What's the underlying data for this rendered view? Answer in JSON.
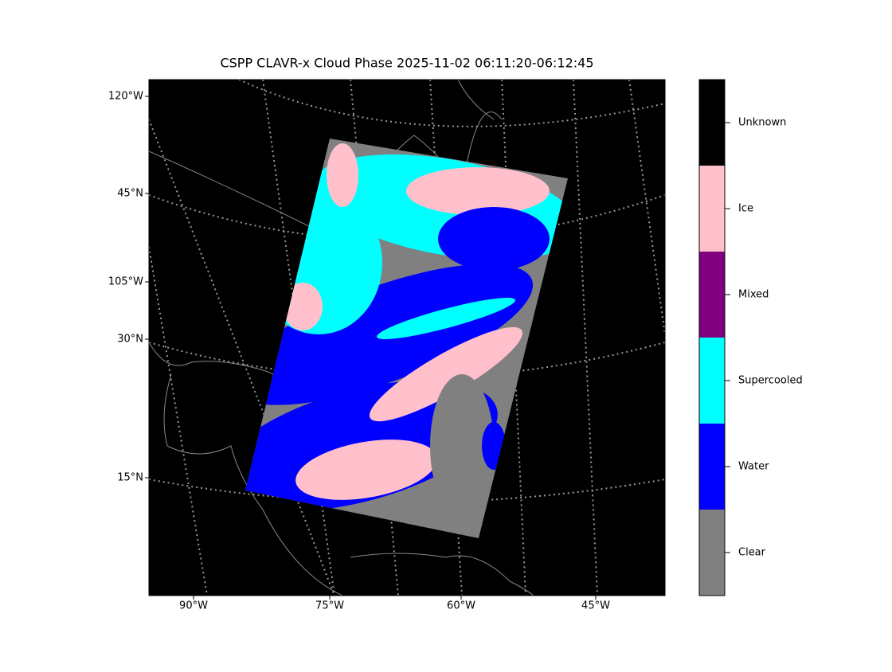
{
  "title": "CSPP CLAVR-x Cloud Phase 2025-11-02 06:11:20-06:12:45",
  "map": {
    "left_labels": [
      "120°W",
      "45°N",
      "105°W",
      "30°N",
      "15°N"
    ],
    "bottom_labels": [
      "90°W",
      "75°W",
      "60°W",
      "45°W"
    ]
  },
  "colorbar": {
    "classes": [
      {
        "label": "Unknown",
        "color": "#000000"
      },
      {
        "label": "Ice",
        "color": "#ffc0cb"
      },
      {
        "label": "Mixed",
        "color": "#800080"
      },
      {
        "label": "Supercooled",
        "color": "#00ffff"
      },
      {
        "label": "Water",
        "color": "#0000ff"
      },
      {
        "label": "Clear",
        "color": "#808080"
      }
    ]
  }
}
